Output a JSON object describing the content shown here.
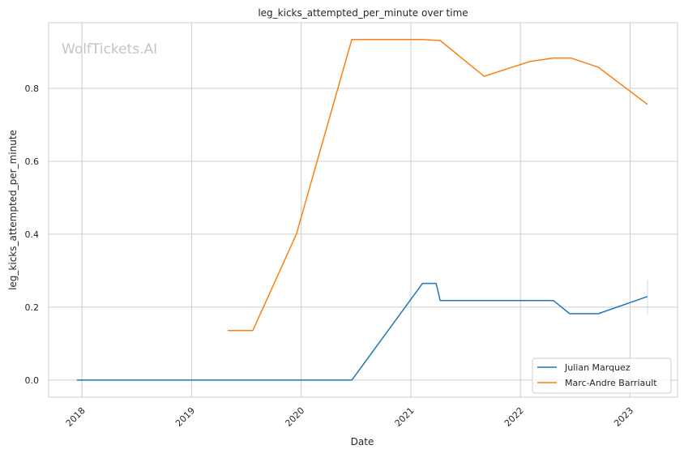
{
  "chart_data": {
    "type": "line",
    "title": "leg_kicks_attempted_per_minute over time",
    "xlabel": "Date",
    "ylabel": "leg_kicks_attempted_per_minute",
    "watermark": "WolfTickets.AI",
    "xlim": [
      "2017-09-12",
      "2023-06-08"
    ],
    "ylim": [
      -0.047,
      0.98
    ],
    "x_ticks": [
      "2018",
      "2019",
      "2020",
      "2021",
      "2022",
      "2023"
    ],
    "y_ticks": [
      "0.0",
      "0.2",
      "0.4",
      "0.6",
      "0.8"
    ],
    "grid": true,
    "legend_position": "bottom-right",
    "series": [
      {
        "name": "Julian Marquez",
        "color": "#1f77b4",
        "x": [
          "2017-12-15",
          "2020-06-18",
          "2021-02-09",
          "2021-03-26",
          "2021-04-09",
          "2022-04-21",
          "2022-06-14",
          "2022-09-17",
          "2023-02-28"
        ],
        "y": [
          0.0,
          0.0,
          0.265,
          0.265,
          0.218,
          0.218,
          0.182,
          0.182,
          0.229
        ],
        "error_bar": {
          "x": "2023-02-28",
          "low": 0.18,
          "high": 0.275
        }
      },
      {
        "name": "Marc-Andre Barriault",
        "color": "#ff7f0e",
        "x": [
          "2019-05-01",
          "2019-07-24",
          "2019-12-16",
          "2020-06-18",
          "2021-02-09",
          "2021-04-09",
          "2021-09-02",
          "2022-02-03",
          "2022-04-21",
          "2022-06-18",
          "2022-09-17",
          "2023-02-28"
        ],
        "y": [
          0.136,
          0.136,
          0.4,
          0.934,
          0.934,
          0.931,
          0.833,
          0.874,
          0.883,
          0.883,
          0.858,
          0.756
        ]
      }
    ]
  }
}
